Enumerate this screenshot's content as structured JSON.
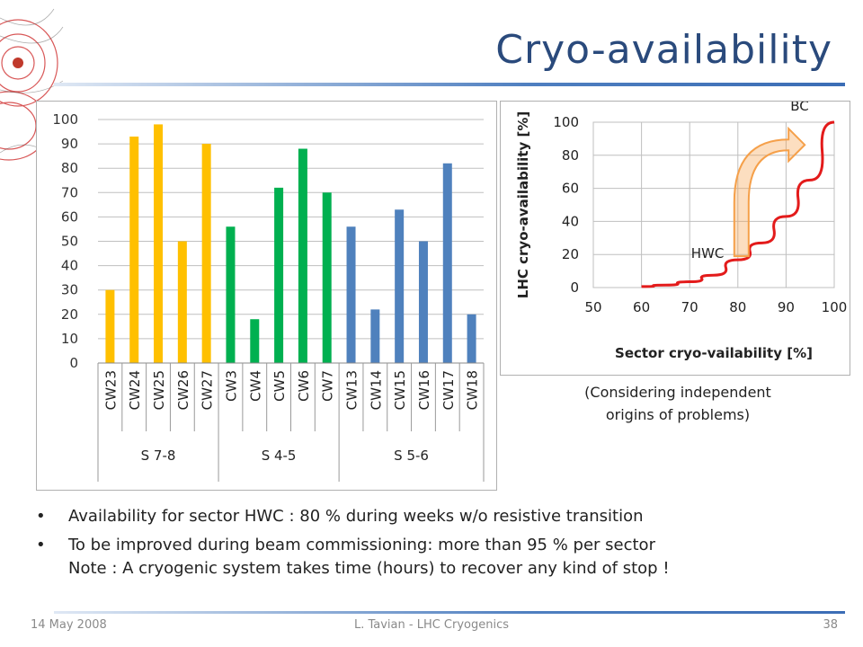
{
  "slide": {
    "title": "Cryo-availability",
    "note_line1": "(Considering independent",
    "note_line2": "origins of problems)",
    "bullets": [
      "Availability for sector HWC : 80 % during weeks w/o resistive transition",
      "To be improved during beam commissioning: more than 95 % per sector",
      "Note : A cryogenic system takes time (hours) to recover any kind of stop !"
    ],
    "bullet_symbol": "•"
  },
  "footer": {
    "date": "14 May 2008",
    "author": "L. Tavian - LHC Cryogenics",
    "page": "38"
  },
  "colors": {
    "title": "#2a4a7c",
    "s78": "#FFC000",
    "s45": "#00B050",
    "s56": "#4F81BD",
    "curve": "#E31B1B",
    "arrow": "#F5A04A"
  },
  "chart_data": [
    {
      "type": "bar",
      "categories": [
        "CW23",
        "CW24",
        "CW25",
        "CW26",
        "CW27",
        "CW3",
        "CW4",
        "CW5",
        "CW6",
        "CW7",
        "CW13",
        "CW14",
        "CW15",
        "CW16",
        "CW17",
        "CW18"
      ],
      "values": [
        30,
        93,
        98,
        50,
        90,
        56,
        18,
        72,
        88,
        70,
        56,
        22,
        63,
        50,
        82,
        20
      ],
      "groups": [
        {
          "label": "S 7-8",
          "start": 0,
          "count": 5,
          "color": "#FFC000"
        },
        {
          "label": "S 4-5",
          "start": 5,
          "count": 5,
          "color": "#00B050"
        },
        {
          "label": "S 5-6",
          "start": 10,
          "count": 6,
          "color": "#4F81BD"
        }
      ],
      "yticks": [
        0,
        10,
        20,
        30,
        40,
        50,
        60,
        70,
        80,
        90,
        100
      ],
      "ylim": [
        0,
        100
      ],
      "grid": true
    },
    {
      "type": "line",
      "xlabel": "Sector cryo-vailability  [%]",
      "ylabel": "LHC cryo-availability  [%]",
      "xlim": [
        50,
        100
      ],
      "ylim": [
        0,
        100
      ],
      "xticks": [
        50,
        60,
        70,
        80,
        90,
        100
      ],
      "yticks": [
        0,
        20,
        40,
        60,
        80,
        100
      ],
      "grid": true,
      "series": [
        {
          "x": [
            60,
            65,
            70,
            75,
            80,
            85,
            90,
            95,
            100
          ],
          "y": [
            0.6,
            1.5,
            3.5,
            7.5,
            16.8,
            27.0,
            43.0,
            65.0,
            100
          ]
        }
      ],
      "annotations": [
        {
          "text": "HWC",
          "x": 80,
          "y": 16.8
        },
        {
          "text": "BC",
          "x": 95,
          "y": 95
        }
      ]
    }
  ]
}
